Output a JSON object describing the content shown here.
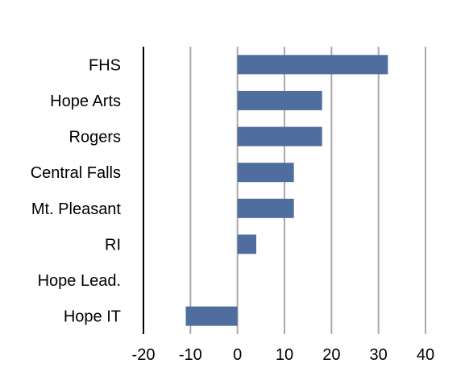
{
  "chart_data": {
    "type": "bar",
    "orientation": "horizontal",
    "title": "",
    "xlabel": "",
    "ylabel": "",
    "categories": [
      "FHS",
      "Hope Arts",
      "Rogers",
      "Central Falls",
      "Mt. Pleasant",
      "RI",
      "Hope Lead.",
      "Hope IT"
    ],
    "values": [
      32,
      18,
      18,
      12,
      12,
      4,
      0,
      -11
    ],
    "xlim": [
      -20,
      40
    ],
    "xticks": [
      "-20",
      "-10",
      "0",
      "10",
      "20",
      "30",
      "40"
    ],
    "grid": "vertical",
    "legend": "none",
    "bar_color": "#4f6d9e",
    "grid_color": "#aaaaaa",
    "axis_color": "#000000"
  }
}
